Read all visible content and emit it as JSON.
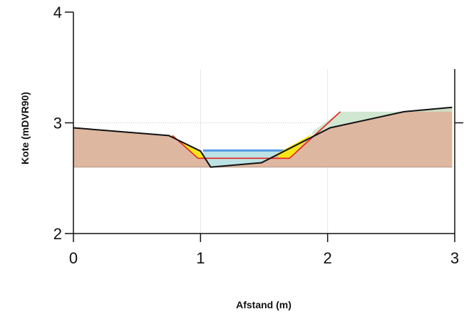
{
  "chart_data": {
    "type": "area",
    "xlabel": "Afstand (m)",
    "ylabel": "Kote (mDVR90)",
    "xlim": [
      0,
      3
    ],
    "ylim": [
      2,
      4
    ],
    "x_ticks": [
      "0",
      "1",
      "2",
      "3"
    ],
    "y_ticks": [
      "2",
      "3",
      "4"
    ],
    "grid": true,
    "base_level": 2.6,
    "terrain": {
      "x": [
        0,
        0.75,
        1.0,
        1.08,
        1.48,
        2.02,
        2.6,
        2.98
      ],
      "y": [
        2.955,
        2.885,
        2.745,
        2.6,
        2.64,
        2.955,
        3.1,
        3.14
      ]
    },
    "design_profile": {
      "x": [
        0.78,
        0.98,
        1.7,
        2.1
      ],
      "y": [
        2.885,
        2.68,
        2.68,
        3.1
      ]
    },
    "water_level": 2.75,
    "water_extent": [
      1.02,
      1.66
    ],
    "colors": {
      "terrain_fill": "#ddb79f",
      "terrain_line": "#111111",
      "design_line": "#e8201b",
      "cut_fill": "#f7e617",
      "fill_area": "#c9e3c9",
      "water_fill": "#bde2e6",
      "water_line": "#5599e6"
    }
  }
}
